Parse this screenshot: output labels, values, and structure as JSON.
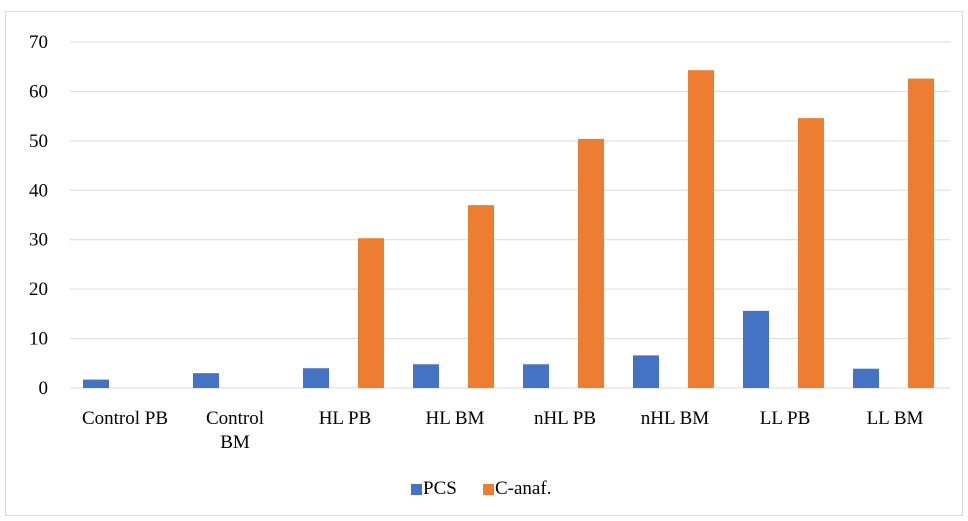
{
  "chart_data": {
    "type": "bar",
    "title": "",
    "xlabel": "",
    "ylabel": "",
    "categories": [
      [
        "Control PB"
      ],
      [
        "Control",
        "BM"
      ],
      [
        "HL PB"
      ],
      [
        "HL BM"
      ],
      [
        "nHL PB"
      ],
      [
        "nHL BM"
      ],
      [
        "LL PB"
      ],
      [
        "LL BM"
      ]
    ],
    "series": [
      {
        "name": "PCS",
        "color": "#4472c4",
        "values": [
          1.7,
          3.0,
          4.0,
          4.8,
          4.8,
          6.6,
          15.6,
          3.9
        ]
      },
      {
        "name": "C-anaf.",
        "color": "#ed7d31",
        "values": [
          0,
          0,
          30.3,
          37.0,
          50.4,
          64.3,
          54.6,
          62.6
        ]
      }
    ],
    "ylim": [
      0,
      70
    ],
    "yticks": [
      "0",
      "10",
      "20",
      "30",
      "40",
      "50",
      "60",
      "70"
    ],
    "grid": true,
    "grid_color": "#d9d9d9",
    "legend": "bottom"
  }
}
